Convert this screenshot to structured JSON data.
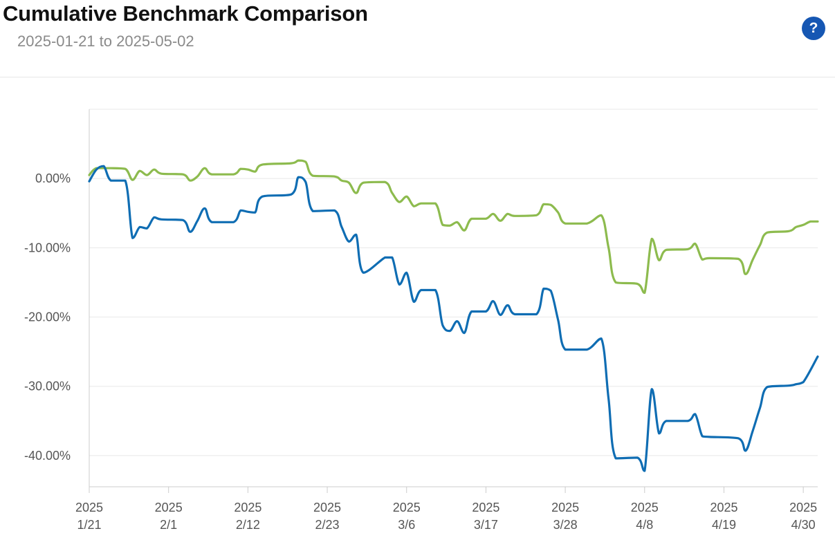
{
  "header": {
    "title": "Cumulative Benchmark Comparison",
    "subtitle": "2025-01-21 to 2025-05-02",
    "help_label": "?",
    "help_icon": "question-circle-icon"
  },
  "colors": {
    "series_blue": "#0f6db3",
    "series_green": "#8dbb4e",
    "grid": "#e8e8e8",
    "help_button": "#1657b3"
  },
  "chart_data": {
    "type": "line",
    "title": "Cumulative Benchmark Comparison",
    "subtitle": "2025-01-21 to 2025-05-02",
    "xlim": [
      "2025-01-21",
      "2025-05-02"
    ],
    "ylim": [
      -44.5,
      10
    ],
    "grid": true,
    "legend": "none",
    "y_ticks": [
      {
        "value": 0,
        "label": "0.00%"
      },
      {
        "value": -10,
        "label": "-10.00%"
      },
      {
        "value": -20,
        "label": "-20.00%"
      },
      {
        "value": -30,
        "label": "-30.00%"
      },
      {
        "value": -40,
        "label": "-40.00%"
      }
    ],
    "x_ticks": [
      {
        "date": "2025-01-21",
        "year": "2025",
        "label": "1/21"
      },
      {
        "date": "2025-02-01",
        "year": "2025",
        "label": "2/1"
      },
      {
        "date": "2025-02-12",
        "year": "2025",
        "label": "2/12"
      },
      {
        "date": "2025-02-23",
        "year": "2025",
        "label": "2/23"
      },
      {
        "date": "2025-03-06",
        "year": "2025",
        "label": "3/6"
      },
      {
        "date": "2025-03-17",
        "year": "2025",
        "label": "3/17"
      },
      {
        "date": "2025-03-28",
        "year": "2025",
        "label": "3/28"
      },
      {
        "date": "2025-04-08",
        "year": "2025",
        "label": "4/8"
      },
      {
        "date": "2025-04-19",
        "year": "2025",
        "label": "4/19"
      },
      {
        "date": "2025-04-30",
        "year": "2025",
        "label": "4/30"
      }
    ],
    "series": [
      {
        "color": "#0f6db3",
        "points": [
          [
            "2025-01-21",
            -0.4
          ],
          [
            "2025-01-22",
            1.3
          ],
          [
            "2025-01-23",
            1.8
          ],
          [
            "2025-01-24",
            -0.3
          ],
          [
            "2025-01-26",
            -0.3
          ],
          [
            "2025-01-27",
            -8.6
          ],
          [
            "2025-01-28",
            -7.0
          ],
          [
            "2025-01-29",
            -7.2
          ],
          [
            "2025-01-30",
            -5.6
          ],
          [
            "2025-01-31",
            -5.9
          ],
          [
            "2025-02-03",
            -6.0
          ],
          [
            "2025-02-04",
            -7.7
          ],
          [
            "2025-02-05",
            -6.1
          ],
          [
            "2025-02-06",
            -4.3
          ],
          [
            "2025-02-07",
            -6.3
          ],
          [
            "2025-02-10",
            -6.3
          ],
          [
            "2025-02-11",
            -4.6
          ],
          [
            "2025-02-12",
            -4.8
          ],
          [
            "2025-02-13",
            -4.9
          ],
          [
            "2025-02-14",
            -2.6
          ],
          [
            "2025-02-18",
            -2.3
          ],
          [
            "2025-02-19",
            0.2
          ],
          [
            "2025-02-20",
            -0.5
          ],
          [
            "2025-02-21",
            -4.7
          ],
          [
            "2025-02-24",
            -4.6
          ],
          [
            "2025-02-25",
            -7.0
          ],
          [
            "2025-02-26",
            -9.1
          ],
          [
            "2025-02-27",
            -8.1
          ],
          [
            "2025-02-28",
            -13.6
          ],
          [
            "2025-03-03",
            -11.4
          ],
          [
            "2025-03-04",
            -11.4
          ],
          [
            "2025-03-05",
            -15.3
          ],
          [
            "2025-03-06",
            -13.6
          ],
          [
            "2025-03-07",
            -17.8
          ],
          [
            "2025-03-08",
            -16.1
          ],
          [
            "2025-03-10",
            -16.1
          ],
          [
            "2025-03-11",
            -21.2
          ],
          [
            "2025-03-12",
            -22.0
          ],
          [
            "2025-03-13",
            -20.6
          ],
          [
            "2025-03-14",
            -22.3
          ],
          [
            "2025-03-15",
            -19.2
          ],
          [
            "2025-03-17",
            -19.2
          ],
          [
            "2025-03-18",
            -17.7
          ],
          [
            "2025-03-19",
            -19.7
          ],
          [
            "2025-03-20",
            -18.3
          ],
          [
            "2025-03-21",
            -19.6
          ],
          [
            "2025-03-24",
            -19.6
          ],
          [
            "2025-03-25",
            -15.9
          ],
          [
            "2025-03-26",
            -16.2
          ],
          [
            "2025-03-27",
            -20.4
          ],
          [
            "2025-03-28",
            -24.7
          ],
          [
            "2025-03-31",
            -24.7
          ],
          [
            "2025-04-02",
            -23.1
          ],
          [
            "2025-04-03",
            -31.8
          ],
          [
            "2025-04-04",
            -40.4
          ],
          [
            "2025-04-07",
            -40.3
          ],
          [
            "2025-04-08",
            -42.2
          ],
          [
            "2025-04-09",
            -30.4
          ],
          [
            "2025-04-10",
            -36.8
          ],
          [
            "2025-04-11",
            -35.0
          ],
          [
            "2025-04-14",
            -35.0
          ],
          [
            "2025-04-15",
            -34.0
          ],
          [
            "2025-04-16",
            -37.2
          ],
          [
            "2025-04-17",
            -37.3
          ],
          [
            "2025-04-21",
            -37.5
          ],
          [
            "2025-04-22",
            -39.3
          ],
          [
            "2025-04-23",
            -36.4
          ],
          [
            "2025-04-24",
            -33.1
          ],
          [
            "2025-04-25",
            -30.1
          ],
          [
            "2025-04-28",
            -29.9
          ],
          [
            "2025-04-29",
            -29.7
          ],
          [
            "2025-04-30",
            -29.4
          ],
          [
            "2025-05-02",
            -25.7
          ]
        ]
      },
      {
        "color": "#8dbb4e",
        "points": [
          [
            "2025-01-21",
            0.5
          ],
          [
            "2025-01-22",
            1.5
          ],
          [
            "2025-01-24",
            1.5
          ],
          [
            "2025-01-26",
            1.4
          ],
          [
            "2025-01-27",
            -0.2
          ],
          [
            "2025-01-28",
            1.1
          ],
          [
            "2025-01-29",
            0.5
          ],
          [
            "2025-01-30",
            1.3
          ],
          [
            "2025-01-31",
            0.7
          ],
          [
            "2025-02-03",
            0.6
          ],
          [
            "2025-02-04",
            -0.3
          ],
          [
            "2025-02-05",
            0.3
          ],
          [
            "2025-02-06",
            1.5
          ],
          [
            "2025-02-07",
            0.6
          ],
          [
            "2025-02-10",
            0.6
          ],
          [
            "2025-02-11",
            1.4
          ],
          [
            "2025-02-12",
            1.3
          ],
          [
            "2025-02-13",
            1.0
          ],
          [
            "2025-02-14",
            2.0
          ],
          [
            "2025-02-18",
            2.2
          ],
          [
            "2025-02-19",
            2.6
          ],
          [
            "2025-02-20",
            2.4
          ],
          [
            "2025-02-21",
            0.4
          ],
          [
            "2025-02-24",
            0.3
          ],
          [
            "2025-02-25",
            -0.3
          ],
          [
            "2025-02-26",
            -0.6
          ],
          [
            "2025-02-27",
            -2.1
          ],
          [
            "2025-02-28",
            -0.6
          ],
          [
            "2025-03-03",
            -0.5
          ],
          [
            "2025-03-04",
            -2.1
          ],
          [
            "2025-03-05",
            -3.4
          ],
          [
            "2025-03-06",
            -2.6
          ],
          [
            "2025-03-07",
            -4.0
          ],
          [
            "2025-03-08",
            -3.6
          ],
          [
            "2025-03-10",
            -3.6
          ],
          [
            "2025-03-11",
            -6.7
          ],
          [
            "2025-03-12",
            -6.8
          ],
          [
            "2025-03-13",
            -6.3
          ],
          [
            "2025-03-14",
            -7.5
          ],
          [
            "2025-03-15",
            -5.8
          ],
          [
            "2025-03-17",
            -5.8
          ],
          [
            "2025-03-18",
            -5.1
          ],
          [
            "2025-03-19",
            -6.1
          ],
          [
            "2025-03-20",
            -5.1
          ],
          [
            "2025-03-21",
            -5.4
          ],
          [
            "2025-03-24",
            -5.3
          ],
          [
            "2025-03-25",
            -3.7
          ],
          [
            "2025-03-26",
            -3.8
          ],
          [
            "2025-03-27",
            -4.9
          ],
          [
            "2025-03-28",
            -6.5
          ],
          [
            "2025-03-31",
            -6.5
          ],
          [
            "2025-04-02",
            -5.3
          ],
          [
            "2025-04-03",
            -10.0
          ],
          [
            "2025-04-04",
            -15.0
          ],
          [
            "2025-04-07",
            -15.2
          ],
          [
            "2025-04-08",
            -16.5
          ],
          [
            "2025-04-09",
            -8.7
          ],
          [
            "2025-04-10",
            -11.8
          ],
          [
            "2025-04-11",
            -10.3
          ],
          [
            "2025-04-14",
            -10.2
          ],
          [
            "2025-04-15",
            -9.4
          ],
          [
            "2025-04-16",
            -11.7
          ],
          [
            "2025-04-17",
            -11.5
          ],
          [
            "2025-04-21",
            -11.6
          ],
          [
            "2025-04-22",
            -13.8
          ],
          [
            "2025-04-23",
            -11.7
          ],
          [
            "2025-04-24",
            -9.6
          ],
          [
            "2025-04-25",
            -7.8
          ],
          [
            "2025-04-28",
            -7.6
          ],
          [
            "2025-04-29",
            -7.0
          ],
          [
            "2025-04-30",
            -6.7
          ],
          [
            "2025-05-01",
            -6.2
          ],
          [
            "2025-05-02",
            -6.2
          ]
        ]
      }
    ]
  }
}
